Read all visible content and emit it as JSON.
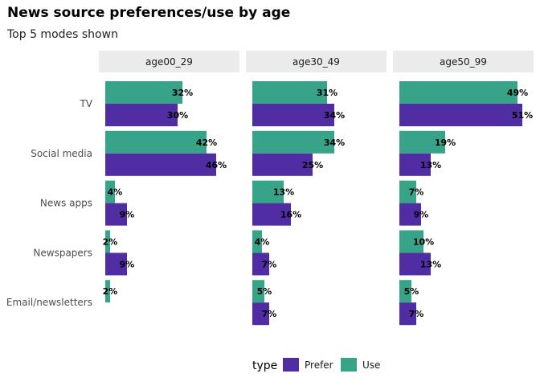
{
  "chart_data": {
    "type": "bar",
    "orientation": "horizontal",
    "title": "News source preferences/use by age",
    "subtitle": "Top 5 modes shown",
    "facets": [
      "age00_29",
      "age30_49",
      "age50_99"
    ],
    "categories": [
      "TV",
      "Social media",
      "News apps",
      "Newspapers",
      "Email/newsletters"
    ],
    "legend": {
      "title": "type",
      "position": "bottom"
    },
    "series": [
      {
        "name": "Use",
        "color": "#37a388",
        "values": [
          [
            32,
            42,
            4,
            2,
            2
          ],
          [
            31,
            34,
            13,
            4,
            5
          ],
          [
            49,
            19,
            7,
            10,
            5
          ]
        ],
        "labels": [
          [
            "32%",
            "42%",
            "4%",
            "2%",
            "2%"
          ],
          [
            "31%",
            "34%",
            "13%",
            "4%",
            "5%"
          ],
          [
            "49%",
            "19%",
            "7%",
            "10%",
            "5%"
          ]
        ]
      },
      {
        "name": "Prefer",
        "color": "#512da3",
        "values": [
          [
            30,
            46,
            9,
            9,
            null
          ],
          [
            34,
            25,
            16,
            7,
            7
          ],
          [
            51,
            13,
            9,
            13,
            7
          ]
        ],
        "labels": [
          [
            "30%",
            "46%",
            "9%",
            "9%",
            ""
          ],
          [
            "34%",
            "25%",
            "16%",
            "7%",
            "7%"
          ],
          [
            "51%",
            "13%",
            "9%",
            "13%",
            "7%"
          ]
        ]
      }
    ],
    "xlim": [
      0,
      52
    ],
    "grid": false
  }
}
